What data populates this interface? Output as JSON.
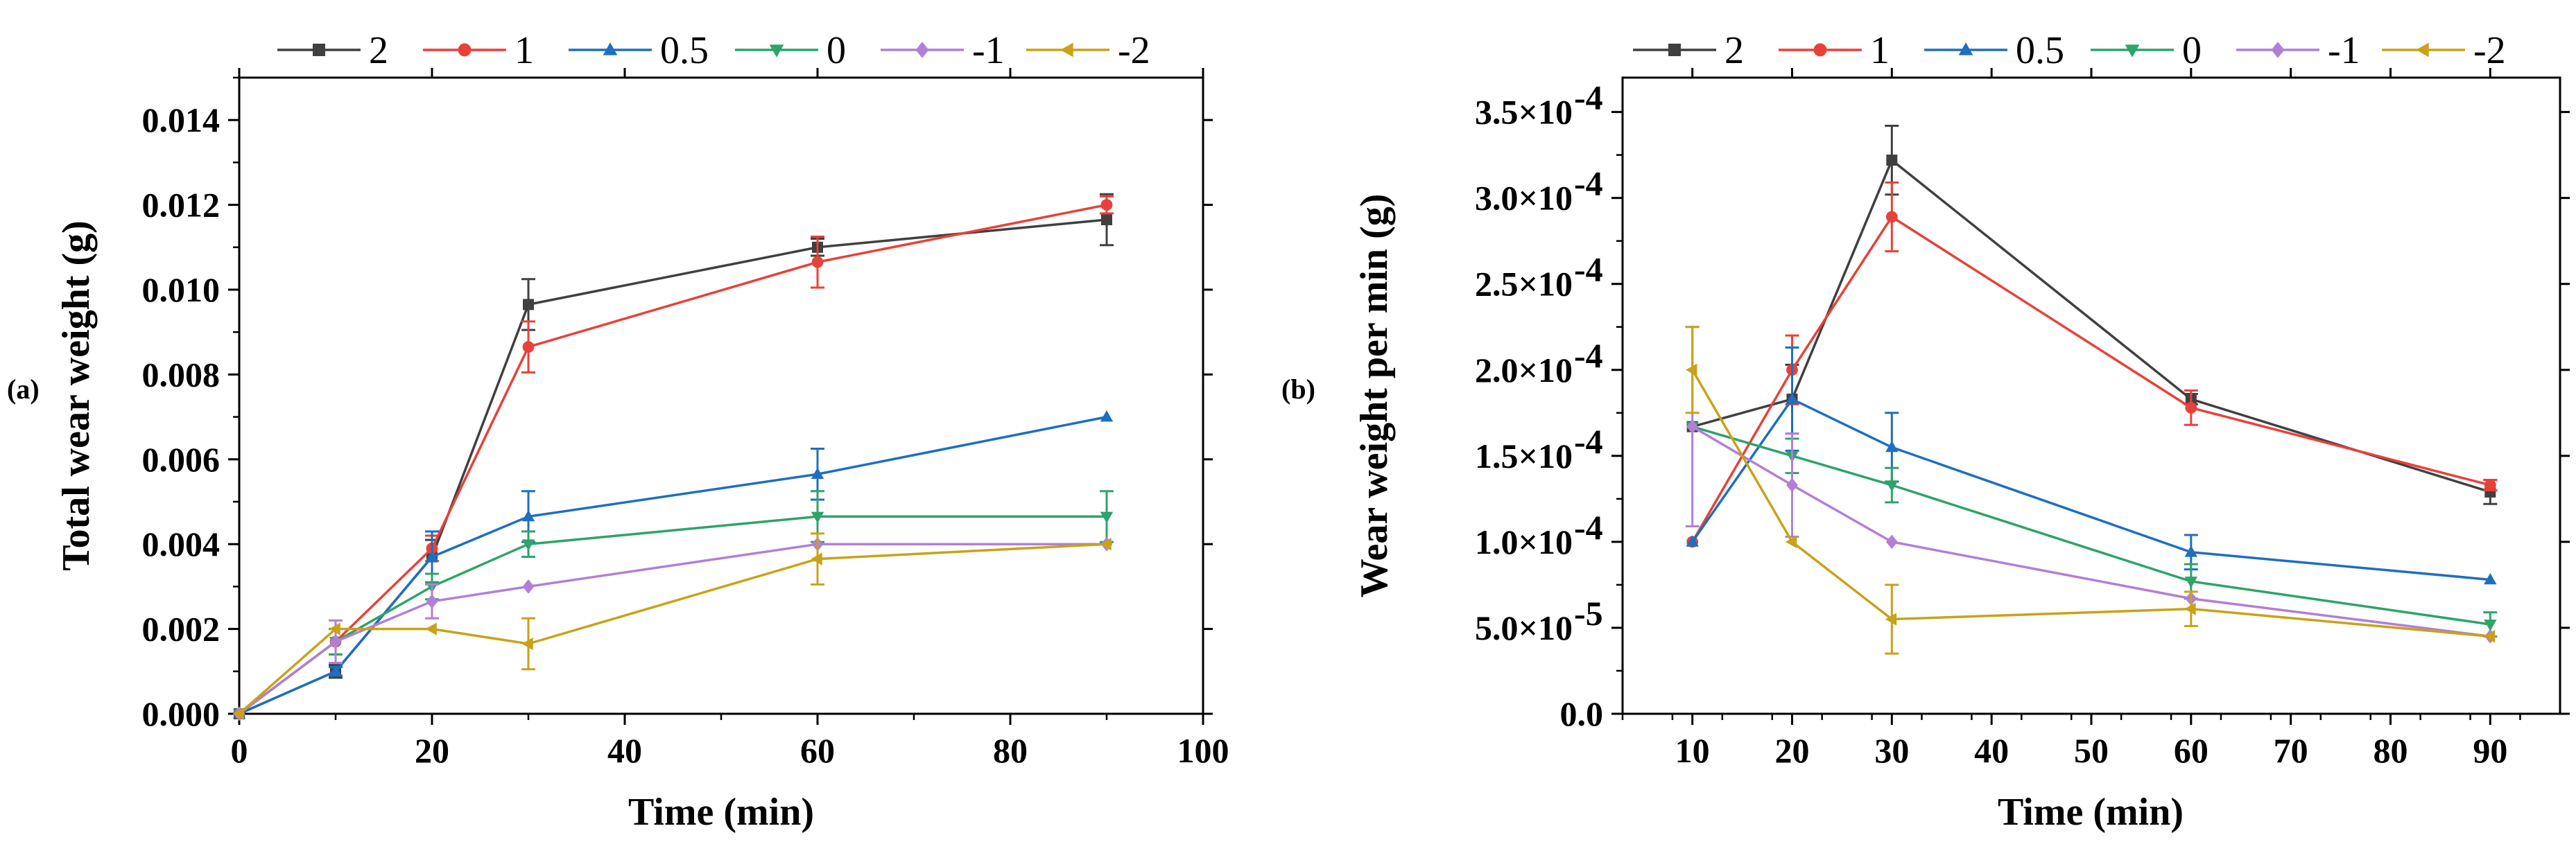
{
  "chart_data": [
    {
      "panel_label": "(a)",
      "type": "line",
      "xlabel": "Time (min)",
      "ylabel": "Total wear weight (g)",
      "xlim": [
        0,
        100
      ],
      "ylim": [
        0,
        0.015
      ],
      "xticks": [
        "0",
        "20",
        "40",
        "60",
        "80",
        "100"
      ],
      "xtick_values": [
        0,
        20,
        40,
        60,
        80,
        100
      ],
      "yticks": [
        "0.000",
        "0.002",
        "0.004",
        "0.006",
        "0.008",
        "0.010",
        "0.012",
        "0.014"
      ],
      "ytick_values": [
        0,
        0.002,
        0.004,
        0.006,
        0.008,
        0.01,
        0.012,
        0.014
      ],
      "legend_position": "top",
      "grid": false,
      "x": [
        0,
        10,
        20,
        30,
        60,
        90
      ],
      "series": [
        {
          "name": "2",
          "color": "#404040",
          "marker": "square",
          "values": [
            0,
            0.001,
            0.0037,
            0.00965,
            0.011,
            0.01165
          ],
          "errors": [
            0,
            0.00015,
            0.0004,
            0.0006,
            0.0002,
            0.0006
          ]
        },
        {
          "name": "1",
          "color": "#e8413a",
          "marker": "circle",
          "values": [
            0,
            0.0017,
            0.0039,
            0.00865,
            0.01065,
            0.012
          ],
          "errors": [
            0,
            0.0003,
            0.0003,
            0.0006,
            0.0006,
            0.0002
          ]
        },
        {
          "name": "0.5",
          "color": "#1e6fc0",
          "marker": "triangle-up",
          "values": [
            0,
            0.001,
            0.0037,
            0.00465,
            0.00565,
            0.007
          ],
          "errors": [
            0,
            0.0001,
            0.0006,
            0.0006,
            0.0006,
            0
          ]
        },
        {
          "name": "0",
          "color": "#2ea36a",
          "marker": "triangle-down",
          "values": [
            0,
            0.0017,
            0.003,
            0.004,
            0.00465,
            0.00465
          ],
          "errors": [
            0,
            0.0003,
            0.0003,
            0.0003,
            0.0006,
            0.0006
          ]
        },
        {
          "name": "-1",
          "color": "#b27fd6",
          "marker": "diamond",
          "values": [
            0,
            0.0017,
            0.00265,
            0.003,
            0.004,
            0.004
          ],
          "errors": [
            0,
            0.0005,
            0.0004,
            0,
            0,
            0
          ]
        },
        {
          "name": "-2",
          "color": "#c9a218",
          "marker": "triangle-left",
          "values": [
            0,
            0.002,
            0.002,
            0.00165,
            0.00365,
            0.004
          ],
          "errors": [
            0,
            0,
            0,
            0.0006,
            0.0006,
            0
          ]
        }
      ]
    },
    {
      "panel_label": "(b)",
      "type": "line",
      "xlabel": "Time (min)",
      "ylabel": "Wear weight per min (g)",
      "xlim": [
        3,
        97
      ],
      "ylim": [
        0,
        0.00037
      ],
      "xticks": [
        "10",
        "20",
        "30",
        "40",
        "50",
        "60",
        "70",
        "80",
        "90"
      ],
      "xtick_values": [
        10,
        20,
        30,
        40,
        50,
        60,
        70,
        80,
        90
      ],
      "yticks": [
        "0.0",
        "5.0×10",
        "1.0×10",
        "1.5×10",
        "2.0×10",
        "2.5×10",
        "3.0×10",
        "3.5×10"
      ],
      "ytick_exponents": [
        "",
        "-5",
        "-4",
        "-4",
        "-4",
        "-4",
        "-4",
        "-4"
      ],
      "ytick_values": [
        0,
        5e-05,
        0.0001,
        0.00015,
        0.0002,
        0.00025,
        0.0003,
        0.00035
      ],
      "legend_position": "top",
      "grid": false,
      "x": [
        10,
        20,
        30,
        60,
        90
      ],
      "series": [
        {
          "name": "2",
          "color": "#404040",
          "marker": "square",
          "values": [
            0.000167,
            0.000183,
            0.000322,
            0.000183,
            0.000129
          ],
          "errors": [
            0,
            2e-05,
            2e-05,
            3e-06,
            7e-06
          ]
        },
        {
          "name": "1",
          "color": "#e8413a",
          "marker": "circle",
          "values": [
            0.0001,
            0.0002,
            0.000289,
            0.000178,
            0.000133
          ],
          "errors": [
            0,
            2e-05,
            2e-05,
            1e-05,
            3e-06
          ]
        },
        {
          "name": "0.5",
          "color": "#1e6fc0",
          "marker": "triangle-up",
          "values": [
            0.0001,
            0.000183,
            0.000155,
            9.4e-05,
            7.8e-05
          ],
          "errors": [
            0,
            3e-05,
            2e-05,
            1e-05,
            0
          ]
        },
        {
          "name": "0",
          "color": "#2ea36a",
          "marker": "triangle-down",
          "values": [
            0.000167,
            0.00015,
            0.000133,
            7.7e-05,
            5.2e-05
          ],
          "errors": [
            0,
            1e-05,
            1e-05,
            1e-05,
            7e-06
          ]
        },
        {
          "name": "-1",
          "color": "#b27fd6",
          "marker": "diamond",
          "values": [
            0.000167,
            0.000133,
            0.0001,
            6.7e-05,
            4.5e-05
          ],
          "errors": [
            5.8e-05,
            3e-05,
            0,
            0,
            0
          ]
        },
        {
          "name": "-2",
          "color": "#c9a218",
          "marker": "triangle-left",
          "values": [
            0.0002,
            0.0001,
            5.5e-05,
            6.1e-05,
            4.5e-05
          ],
          "errors": [
            2.5e-05,
            0,
            2e-05,
            1e-05,
            0
          ]
        }
      ]
    }
  ]
}
